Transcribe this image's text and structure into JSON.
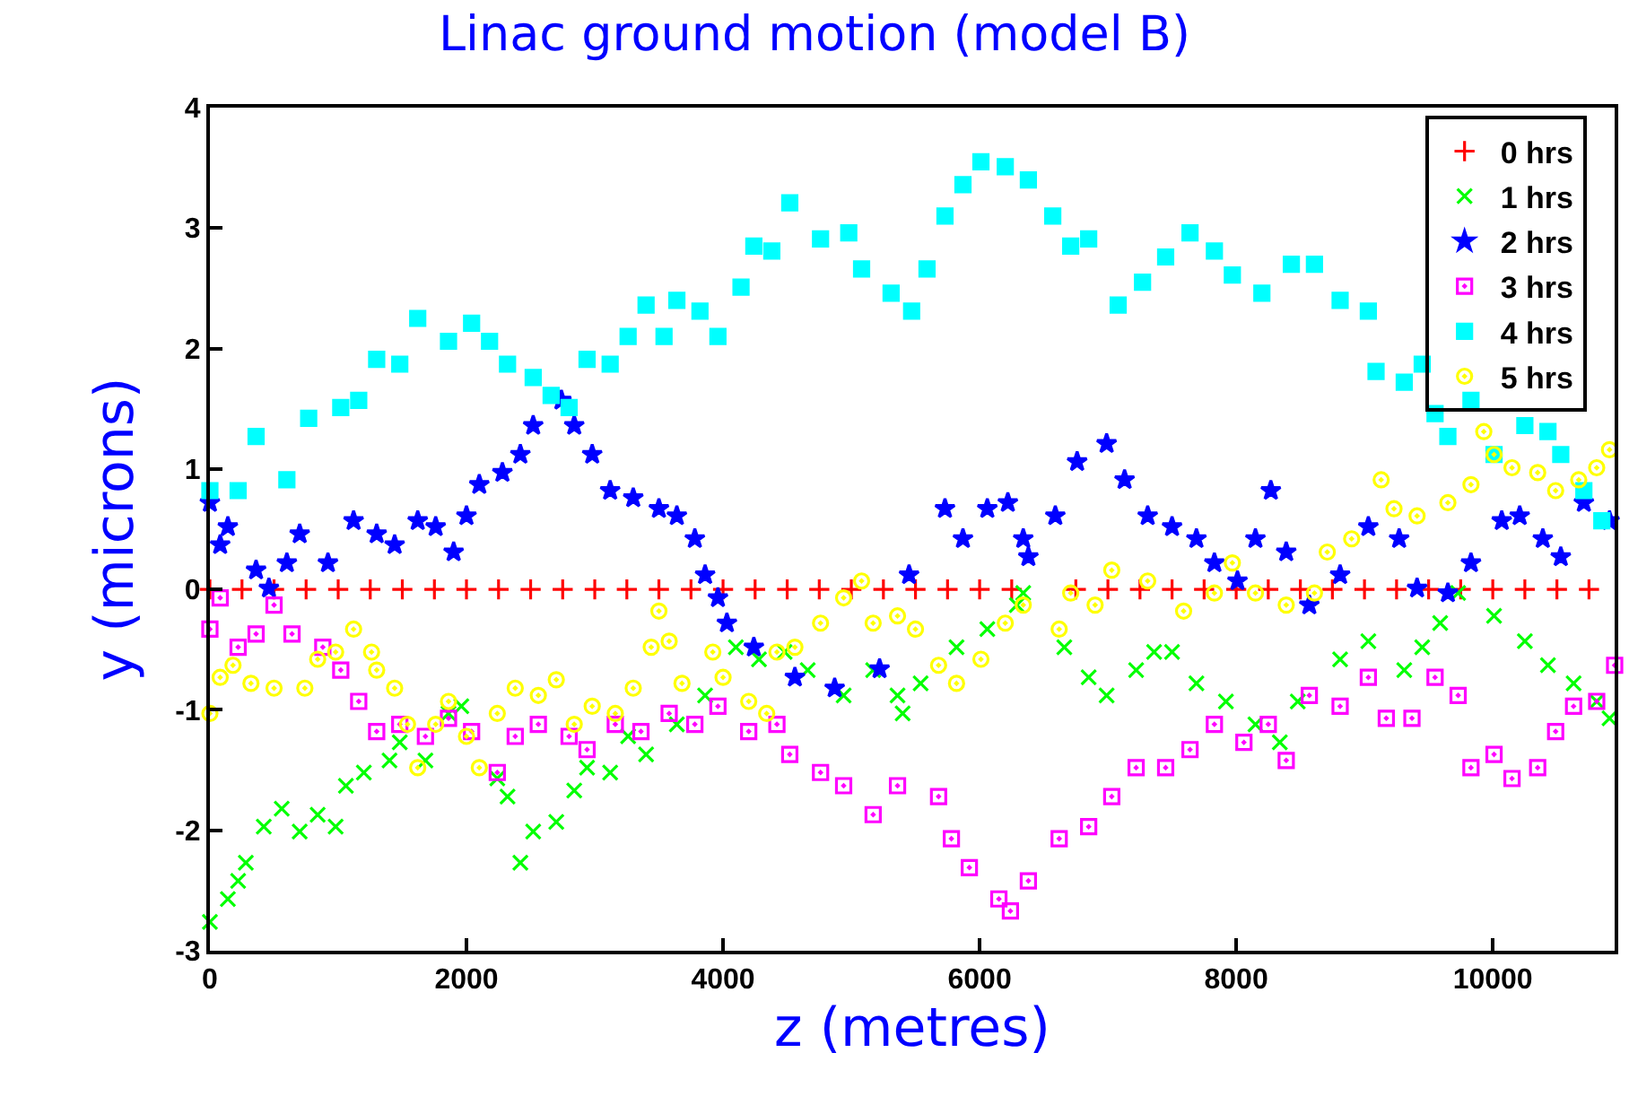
{
  "chart_data": {
    "type": "scatter",
    "title": "Linac ground motion (model B)",
    "xlabel": "z (metres)",
    "ylabel": "y (microns)",
    "xlim": [
      0,
      10950
    ],
    "ylim": [
      -3,
      4
    ],
    "xticks": [
      0,
      2000,
      4000,
      6000,
      8000,
      10000
    ],
    "yticks": [
      -3,
      -2,
      -1,
      0,
      1,
      2,
      3,
      4
    ],
    "legend": "top right",
    "grid": false,
    "series": [
      {
        "name": "0 hrs",
        "color": "#ff0000",
        "marker": "cross",
        "x": [
          0,
          250,
          500,
          750,
          1000,
          1250,
          1500,
          1750,
          2000,
          2250,
          2500,
          2750,
          3000,
          3250,
          3500,
          3750,
          4000,
          4250,
          4500,
          4750,
          5000,
          5250,
          5500,
          5750,
          6000,
          6250,
          6750,
          7000,
          7250,
          7500,
          7750,
          8000,
          8250,
          8500,
          8750,
          9000,
          9250,
          9500,
          9750,
          10000,
          10250,
          10500,
          10750
        ],
        "values": [
          0,
          0,
          0,
          0,
          0,
          0,
          0,
          0,
          0,
          0,
          0,
          0,
          0,
          0,
          0,
          0,
          0,
          0,
          0,
          0,
          0,
          0,
          0,
          0,
          0,
          0,
          0,
          0,
          0,
          0,
          0,
          0,
          0,
          0,
          0,
          0,
          0,
          0,
          0,
          0,
          0,
          0,
          0
        ]
      },
      {
        "name": "1 hrs",
        "color": "#00ff00",
        "marker": "x",
        "x": [
          0,
          140,
          220,
          280,
          420,
          560,
          700,
          840,
          980,
          1060,
          1200,
          1400,
          1480,
          1680,
          1860,
          1960,
          2240,
          2320,
          2420,
          2520,
          2700,
          2840,
          2940,
          3120,
          3260,
          3400,
          3640,
          3860,
          4100,
          4280,
          4480,
          4660,
          4940,
          5170,
          5360,
          5400,
          5540,
          5820,
          6060,
          6290,
          6340,
          6660,
          6850,
          6990,
          7220,
          7360,
          7500,
          7690,
          7920,
          8150,
          8340,
          8480,
          8810,
          9030,
          9310,
          9450,
          9590,
          9730,
          10010,
          10250,
          10430,
          10630,
          10810,
          10910
        ],
        "values": [
          -2.76,
          -2.57,
          -2.42,
          -2.27,
          -1.97,
          -1.82,
          -2.01,
          -1.87,
          -1.97,
          -1.63,
          -1.52,
          -1.42,
          -1.27,
          -1.42,
          -1.03,
          -0.97,
          -1.57,
          -1.72,
          -2.27,
          -2.01,
          -1.93,
          -1.67,
          -1.48,
          -1.52,
          -1.22,
          -1.37,
          -1.12,
          -0.88,
          -0.48,
          -0.58,
          -0.52,
          -0.67,
          -0.88,
          -0.67,
          -0.88,
          -1.03,
          -0.78,
          -0.48,
          -0.33,
          -0.13,
          -0.03,
          -0.48,
          -0.73,
          -0.88,
          -0.67,
          -0.52,
          -0.52,
          -0.78,
          -0.93,
          -1.12,
          -1.27,
          -0.93,
          -0.58,
          -0.43,
          -0.67,
          -0.48,
          -0.28,
          -0.03,
          -0.22,
          -0.43,
          -0.63,
          -0.78,
          -0.93,
          -1.07
        ]
      },
      {
        "name": "2 hrs",
        "color": "#0000ff",
        "marker": "star",
        "x": [
          0,
          80,
          140,
          360,
          460,
          600,
          700,
          920,
          1120,
          1300,
          1440,
          1620,
          1760,
          1900,
          2000,
          2100,
          2280,
          2420,
          2520,
          2740,
          2840,
          2980,
          3120,
          3300,
          3500,
          3640,
          3780,
          3860,
          3960,
          4030,
          4240,
          4560,
          4870,
          5220,
          5450,
          5730,
          5870,
          6060,
          6220,
          6340,
          6380,
          6590,
          6760,
          6990,
          7130,
          7310,
          7500,
          7690,
          7830,
          8010,
          8150,
          8270,
          8390,
          8570,
          8810,
          9030,
          9270,
          9410,
          9650,
          9830,
          10070,
          10210,
          10390,
          10530,
          10710,
          10910
        ],
        "values": [
          0.72,
          0.37,
          0.52,
          0.16,
          0.01,
          0.22,
          0.46,
          0.22,
          0.57,
          0.46,
          0.37,
          0.57,
          0.52,
          0.31,
          0.61,
          0.87,
          0.97,
          1.12,
          1.36,
          1.57,
          1.36,
          1.12,
          0.82,
          0.76,
          0.67,
          0.61,
          0.42,
          0.12,
          -0.07,
          -0.28,
          -0.48,
          -0.73,
          -0.82,
          -0.66,
          0.12,
          0.67,
          0.42,
          0.67,
          0.72,
          0.42,
          0.27,
          0.61,
          1.06,
          1.21,
          0.91,
          0.61,
          0.52,
          0.42,
          0.22,
          0.07,
          0.42,
          0.82,
          0.31,
          -0.13,
          0.12,
          0.52,
          0.42,
          0.01,
          -0.03,
          0.22,
          0.57,
          0.61,
          0.42,
          0.27,
          0.72,
          0.57
        ]
      },
      {
        "name": "3 hrs",
        "color": "#ff00ff",
        "marker": "square-open",
        "x": [
          0,
          80,
          220,
          360,
          500,
          640,
          880,
          1020,
          1160,
          1300,
          1480,
          1680,
          1860,
          2040,
          2240,
          2380,
          2560,
          2800,
          2940,
          3160,
          3360,
          3580,
          3780,
          3960,
          4200,
          4420,
          4520,
          4760,
          4940,
          5170,
          5360,
          5680,
          5780,
          5920,
          6150,
          6240,
          6380,
          6620,
          6850,
          7030,
          7220,
          7450,
          7640,
          7830,
          8060,
          8250,
          8390,
          8570,
          8810,
          9030,
          9170,
          9370,
          9550,
          9730,
          9830,
          10010,
          10150,
          10350,
          10490,
          10630,
          10810,
          10950
        ],
        "values": [
          -0.33,
          -0.07,
          -0.48,
          -0.37,
          -0.13,
          -0.37,
          -0.48,
          -0.67,
          -0.93,
          -1.18,
          -1.12,
          -1.22,
          -1.07,
          -1.18,
          -1.52,
          -1.22,
          -1.12,
          -1.22,
          -1.33,
          -1.12,
          -1.18,
          -1.03,
          -1.12,
          -0.97,
          -1.18,
          -1.12,
          -1.37,
          -1.52,
          -1.63,
          -1.87,
          -1.63,
          -1.72,
          -2.07,
          -2.31,
          -2.57,
          -2.67,
          -2.42,
          -2.07,
          -1.97,
          -1.72,
          -1.48,
          -1.48,
          -1.33,
          -1.12,
          -1.27,
          -1.12,
          -1.42,
          -0.88,
          -0.97,
          -0.73,
          -1.07,
          -1.07,
          -0.73,
          -0.88,
          -1.48,
          -1.37,
          -1.57,
          -1.48,
          -1.18,
          -0.97,
          -0.93,
          -0.63
        ]
      },
      {
        "name": "4 hrs",
        "color": "#00ffff",
        "marker": "square",
        "x": [
          0,
          220,
          360,
          600,
          770,
          1020,
          1160,
          1300,
          1480,
          1620,
          1860,
          2040,
          2180,
          2320,
          2520,
          2660,
          2800,
          2940,
          3120,
          3260,
          3400,
          3540,
          3640,
          3820,
          3960,
          4140,
          4240,
          4380,
          4520,
          4760,
          4980,
          5080,
          5310,
          5470,
          5590,
          5730,
          5870,
          6010,
          6200,
          6380,
          6570,
          6710,
          6850,
          7080,
          7270,
          7450,
          7640,
          7830,
          7970,
          8200,
          8430,
          8610,
          8810,
          9030,
          9090,
          9310,
          9450,
          9550,
          9650,
          9830,
          10010,
          10250,
          10430,
          10530,
          10710,
          10850
        ],
        "values": [
          0.82,
          0.82,
          1.27,
          0.91,
          1.42,
          1.51,
          1.57,
          1.91,
          1.87,
          2.25,
          2.06,
          2.21,
          2.06,
          1.87,
          1.76,
          1.61,
          1.51,
          1.91,
          1.87,
          2.1,
          2.36,
          2.1,
          2.4,
          2.31,
          2.1,
          2.51,
          2.85,
          2.81,
          3.21,
          2.91,
          2.96,
          2.66,
          2.46,
          2.31,
          2.66,
          3.1,
          3.36,
          3.55,
          3.51,
          3.4,
          3.1,
          2.85,
          2.91,
          2.36,
          2.55,
          2.76,
          2.96,
          2.81,
          2.61,
          2.46,
          2.7,
          2.7,
          2.4,
          2.31,
          1.81,
          1.72,
          1.87,
          1.46,
          1.27,
          1.57,
          1.12,
          1.36,
          1.31,
          1.12,
          0.82,
          0.57
        ]
      },
      {
        "name": "5 hrs",
        "color": "#ffff00",
        "marker": "circle-open",
        "x": [
          0,
          80,
          180,
          320,
          500,
          740,
          840,
          980,
          1120,
          1260,
          1300,
          1440,
          1540,
          1620,
          1760,
          1860,
          2000,
          2100,
          2240,
          2380,
          2560,
          2700,
          2840,
          2980,
          3160,
          3300,
          3440,
          3500,
          3580,
          3680,
          3920,
          4000,
          4200,
          4340,
          4420,
          4560,
          4760,
          4940,
          5080,
          5170,
          5360,
          5500,
          5680,
          5820,
          6010,
          6200,
          6340,
          6620,
          6710,
          6900,
          7030,
          7310,
          7590,
          7830,
          7970,
          8150,
          8390,
          8610,
          8710,
          8900,
          9130,
          9230,
          9410,
          9650,
          9830,
          9930,
          10010,
          10150,
          10350,
          10490,
          10670,
          10810,
          10910
        ],
        "values": [
          -1.03,
          -0.73,
          -0.63,
          -0.78,
          -0.82,
          -0.82,
          -0.58,
          -0.52,
          -0.33,
          -0.52,
          -0.67,
          -0.82,
          -1.12,
          -1.48,
          -1.12,
          -0.93,
          -1.22,
          -1.48,
          -1.03,
          -0.82,
          -0.88,
          -0.75,
          -1.12,
          -0.97,
          -1.03,
          -0.82,
          -0.48,
          -0.18,
          -0.43,
          -0.78,
          -0.52,
          -0.73,
          -0.93,
          -1.03,
          -0.52,
          -0.48,
          -0.28,
          -0.07,
          0.07,
          -0.28,
          -0.22,
          -0.33,
          -0.63,
          -0.78,
          -0.58,
          -0.28,
          -0.13,
          -0.33,
          -0.03,
          -0.13,
          0.16,
          0.07,
          -0.18,
          -0.03,
          0.22,
          -0.03,
          -0.13,
          -0.03,
          0.31,
          0.42,
          0.91,
          0.67,
          0.61,
          0.72,
          0.87,
          1.31,
          1.12,
          1.01,
          0.97,
          0.82,
          0.91,
          1.01,
          1.16
        ]
      }
    ]
  }
}
